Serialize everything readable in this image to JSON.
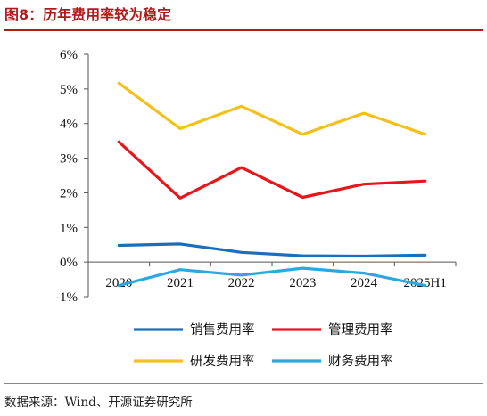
{
  "figure": {
    "title": "图8：历年费用率较为稳定",
    "source": "数据来源：Wind、开源证券研究所"
  },
  "chart_data": {
    "type": "line",
    "categories": [
      "2020",
      "2021",
      "2022",
      "2023",
      "2024",
      "2025H1"
    ],
    "ylim": [
      -1,
      6
    ],
    "yticks": [
      "-1%",
      "0%",
      "1%",
      "2%",
      "3%",
      "4%",
      "5%",
      "6%"
    ],
    "ytick_values": [
      -1,
      0,
      1,
      2,
      3,
      4,
      5,
      6
    ],
    "grid": false,
    "legend_position": "bottom",
    "series": [
      {
        "name": "销售费用率",
        "color": "#1a6fba",
        "values": [
          0.48,
          0.52,
          0.28,
          0.18,
          0.17,
          0.2
        ]
      },
      {
        "name": "管理费用率",
        "color": "#e8161b",
        "values": [
          3.47,
          1.85,
          2.73,
          1.87,
          2.25,
          2.34
        ]
      },
      {
        "name": "研发费用率",
        "color": "#f5c01a",
        "values": [
          5.17,
          3.85,
          4.5,
          3.69,
          4.3,
          3.69
        ]
      },
      {
        "name": "财务费用率",
        "color": "#2aa9e0",
        "values": [
          -0.68,
          -0.22,
          -0.38,
          -0.18,
          -0.32,
          -0.68
        ]
      }
    ]
  }
}
